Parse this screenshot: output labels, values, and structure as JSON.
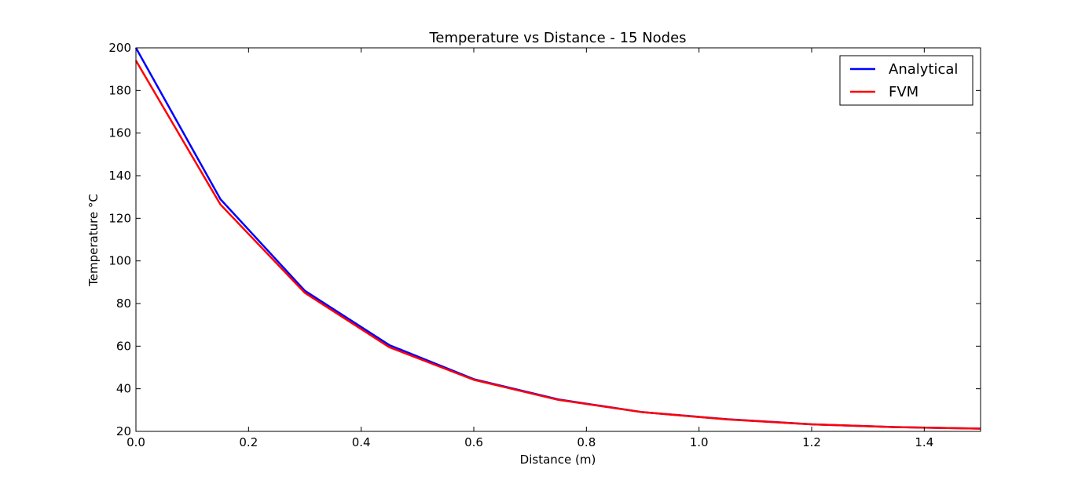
{
  "chart_data": {
    "type": "line",
    "title": "Temperature vs Distance - 15 Nodes",
    "xlabel": "Distance (m)",
    "ylabel": "Temperature °C",
    "xlim": [
      0,
      1.5
    ],
    "ylim": [
      20,
      200
    ],
    "xticks": [
      0.0,
      0.2,
      0.4,
      0.6,
      0.8,
      1.0,
      1.2,
      1.4
    ],
    "xtick_labels": [
      "0.0",
      "0.2",
      "0.4",
      "0.6",
      "0.8",
      "1.0",
      "1.2",
      "1.4"
    ],
    "yticks": [
      20,
      40,
      60,
      80,
      100,
      120,
      140,
      160,
      180,
      200
    ],
    "ytick_labels": [
      "20",
      "40",
      "60",
      "80",
      "100",
      "120",
      "140",
      "160",
      "180",
      "200"
    ],
    "grid": false,
    "legend_position": "top-right",
    "x": [
      0,
      0.15,
      0.3,
      0.45,
      0.6,
      0.75,
      0.9,
      1.05,
      1.2,
      1.35,
      1.5
    ],
    "series": [
      {
        "name": "Analytical",
        "color": "#0000ff",
        "values": [
          200,
          129,
          86,
          60.5,
          44.5,
          35,
          29,
          25.7,
          23.3,
          22,
          21.3
        ]
      },
      {
        "name": "FVM",
        "color": "#ff0000",
        "values": [
          194,
          126.5,
          85,
          59.5,
          44.2,
          34.8,
          29,
          25.6,
          23.3,
          22,
          21.3
        ]
      }
    ]
  }
}
